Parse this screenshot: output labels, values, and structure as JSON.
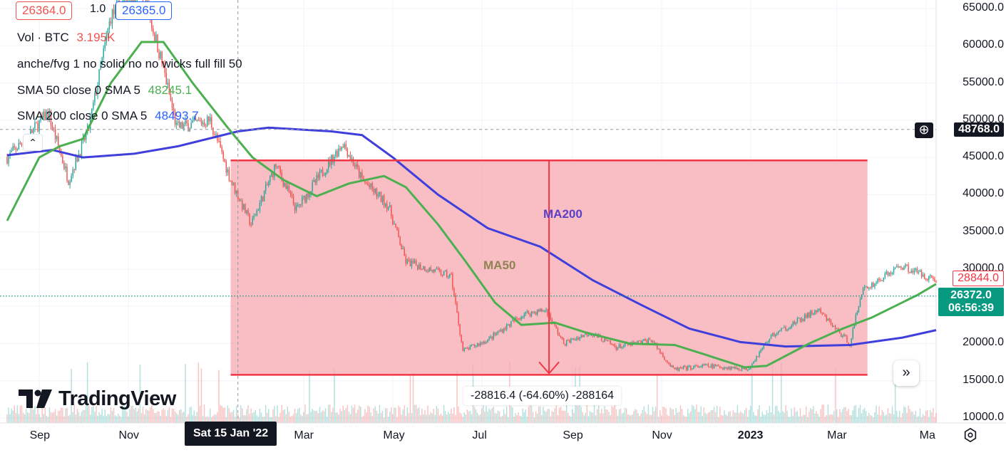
{
  "header": {
    "bid": "26364.0",
    "spread": "1.0",
    "ask": "26365.0"
  },
  "indicators": [
    {
      "label": "Vol · BTC",
      "value": "3.195K",
      "value_color": "#ef5350"
    },
    {
      "label": "anche/fvg 1 no solid no no wicks full fill 50",
      "value": "",
      "value_color": "#131722"
    },
    {
      "label": "SMA 50 close 0 SMA 5",
      "value": "48245.1",
      "value_color": "#4caf50"
    },
    {
      "label": "SMA 200 close 0 SMA 5",
      "value": "48493.7",
      "value_color": "#2962ff"
    }
  ],
  "annotations": {
    "ma200": "MA200",
    "ma50": "MA50",
    "measure": "-28816.4 (-64.60%) -288164"
  },
  "price_tags": {
    "crosshair": "48768.0",
    "high": "28844.0",
    "last": "26372.0",
    "countdown": "06:56:39"
  },
  "crosshair_date": "Sat 15 Jan '22",
  "logo": "TradingView",
  "icons": {
    "collapse": "chevron-up-icon",
    "scroll_right": "double-chevron-right-icon",
    "add": "plus-circle-icon",
    "settings": "settings-icon"
  },
  "colors": {
    "up": "#26a69a",
    "down": "#ef5350",
    "ma50": "#4caf50",
    "ma200": "#3f3fdb",
    "range_fill": "#f7a8b0",
    "range_border": "#f23645",
    "last_price": "#089981"
  },
  "chart_data": {
    "type": "candlestick",
    "symbol": "BTC",
    "y_axis": {
      "ticks": [
        65000,
        60000,
        55000,
        50000,
        45000,
        40000,
        35000,
        30000,
        25000,
        20000,
        15000,
        10000
      ],
      "tick_labels": [
        "65000.0",
        "60000.0",
        "55000.0",
        "50000.0",
        "45000.0",
        "40000.0",
        "35000.0",
        "30000.0",
        "25000.0",
        "20000.0",
        "15000.0",
        "10000.0"
      ],
      "ylim": [
        10000,
        65000
      ]
    },
    "x_axis": {
      "tick_labels": [
        "Sep",
        "Nov",
        "Mar",
        "May",
        "Jul",
        "Sep",
        "Nov",
        "2023",
        "Mar",
        "Ma"
      ],
      "tick_dates": [
        "2021-09-01",
        "2021-11-01",
        "2022-03-01",
        "2022-05-01",
        "2022-07-01",
        "2022-09-01",
        "2022-11-01",
        "2023-01-01",
        "2023-03-01",
        "2023-05-01"
      ],
      "xlim": [
        "2021-08-10",
        "2023-05-08"
      ]
    },
    "price_path": [
      [
        "2021-08-10",
        45000
      ],
      [
        "2021-08-25",
        48000
      ],
      [
        "2021-09-07",
        51000
      ],
      [
        "2021-09-21",
        42000
      ],
      [
        "2021-10-05",
        49000
      ],
      [
        "2021-10-20",
        64000
      ],
      [
        "2021-11-10",
        68000
      ],
      [
        "2021-11-25",
        57000
      ],
      [
        "2021-12-04",
        49000
      ],
      [
        "2021-12-27",
        50000
      ],
      [
        "2022-01-10",
        42000
      ],
      [
        "2022-01-24",
        36000
      ],
      [
        "2022-02-10",
        44000
      ],
      [
        "2022-02-24",
        38000
      ],
      [
        "2022-03-28",
        47000
      ],
      [
        "2022-04-10",
        42000
      ],
      [
        "2022-04-28",
        38500
      ],
      [
        "2022-05-10",
        31000
      ],
      [
        "2022-06-10",
        29000
      ],
      [
        "2022-06-18",
        19000
      ],
      [
        "2022-07-05",
        20500
      ],
      [
        "2022-07-30",
        24000
      ],
      [
        "2022-08-14",
        24500
      ],
      [
        "2022-08-26",
        20000
      ],
      [
        "2022-09-13",
        21500
      ],
      [
        "2022-10-01",
        19500
      ],
      [
        "2022-10-25",
        20500
      ],
      [
        "2022-11-09",
        16500
      ],
      [
        "2022-12-01",
        17000
      ],
      [
        "2022-12-30",
        16600
      ],
      [
        "2023-01-15",
        21000
      ],
      [
        "2023-02-16",
        24500
      ],
      [
        "2023-03-10",
        20000
      ],
      [
        "2023-03-18",
        27000
      ],
      [
        "2023-04-14",
        30500
      ],
      [
        "2023-05-08",
        28500
      ]
    ],
    "series": [
      {
        "name": "SMA 50 close 0 SMA 5",
        "last_value": 48245.1,
        "values": [
          [
            "2021-08-10",
            36500
          ],
          [
            "2021-09-01",
            45000
          ],
          [
            "2021-09-15",
            46500
          ],
          [
            "2021-10-01",
            47500
          ],
          [
            "2021-10-20",
            55000
          ],
          [
            "2021-11-10",
            60500
          ],
          [
            "2021-11-25",
            60500
          ],
          [
            "2021-12-15",
            55000
          ],
          [
            "2022-01-08",
            49000
          ],
          [
            "2022-01-25",
            45000
          ],
          [
            "2022-02-15",
            42000
          ],
          [
            "2022-03-10",
            39800
          ],
          [
            "2022-04-01",
            41500
          ],
          [
            "2022-04-25",
            42500
          ],
          [
            "2022-05-10",
            41000
          ],
          [
            "2022-06-01",
            36000
          ],
          [
            "2022-06-20",
            31000
          ],
          [
            "2022-07-10",
            25500
          ],
          [
            "2022-07-28",
            22500
          ],
          [
            "2022-08-20",
            22800
          ],
          [
            "2022-09-10",
            21500
          ],
          [
            "2022-10-10",
            20000
          ],
          [
            "2022-11-10",
            19800
          ],
          [
            "2022-12-01",
            18500
          ],
          [
            "2022-12-28",
            16800
          ],
          [
            "2023-01-12",
            17000
          ],
          [
            "2023-02-10",
            20000
          ],
          [
            "2023-03-05",
            22000
          ],
          [
            "2023-03-25",
            23500
          ],
          [
            "2023-04-25",
            26500
          ],
          [
            "2023-05-08",
            28000
          ]
        ]
      },
      {
        "name": "SMA 200 close 0 SMA 5",
        "last_value": 48493.7,
        "values": [
          [
            "2021-08-10",
            45300
          ],
          [
            "2021-09-10",
            46000
          ],
          [
            "2021-10-01",
            45000
          ],
          [
            "2021-11-05",
            45500
          ],
          [
            "2021-12-05",
            46500
          ],
          [
            "2022-01-15",
            48500
          ],
          [
            "2022-02-05",
            49000
          ],
          [
            "2022-03-20",
            48500
          ],
          [
            "2022-04-10",
            48000
          ],
          [
            "2022-05-01",
            45000
          ],
          [
            "2022-06-01",
            40000
          ],
          [
            "2022-07-05",
            35500
          ],
          [
            "2022-08-10",
            33000
          ],
          [
            "2022-09-15",
            28500
          ],
          [
            "2022-10-20",
            25000
          ],
          [
            "2022-11-20",
            22000
          ],
          [
            "2022-12-25",
            20200
          ],
          [
            "2023-01-25",
            19600
          ],
          [
            "2023-03-10",
            19800
          ],
          [
            "2023-04-15",
            20800
          ],
          [
            "2023-05-08",
            21800
          ]
        ]
      }
    ],
    "ranges": [
      {
        "from": "2022-01-10",
        "to": "2023-03-22",
        "top": 44600,
        "bottom": 15800,
        "change": -28816.4,
        "change_pct": -64.6
      }
    ],
    "current_price": 26372.0,
    "high_price": 28844.0,
    "crosshair_price": 48768.0,
    "grid": true,
    "legend": "top-left"
  }
}
